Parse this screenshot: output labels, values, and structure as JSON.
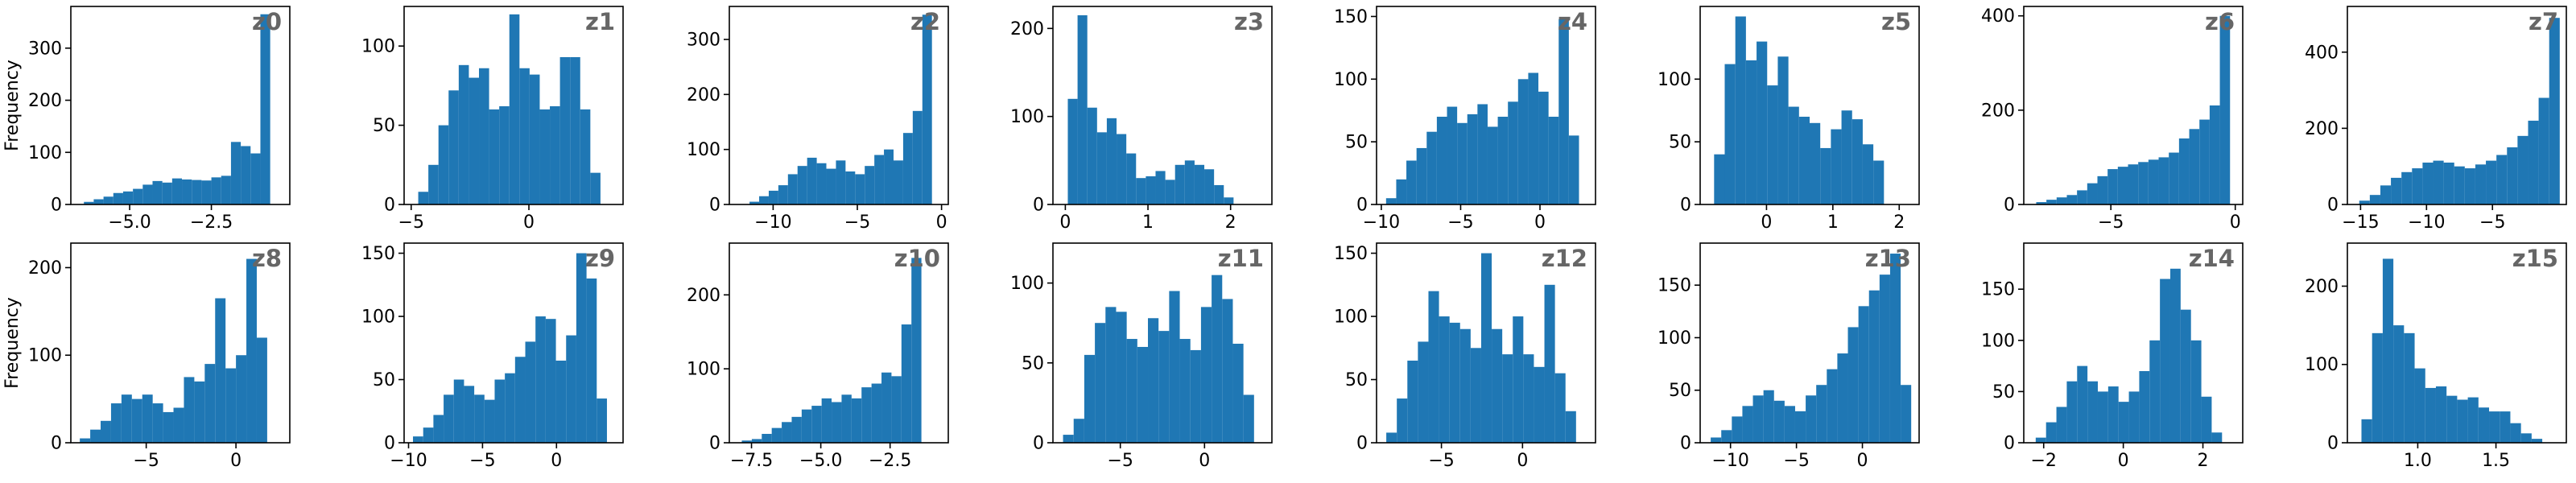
{
  "style": {
    "bar_color": "#1f77b4",
    "title_color": "#666666",
    "axis_color": "#000000"
  },
  "chart_data": [
    {
      "type": "bar",
      "title": "z0",
      "ylabel": "Frequency",
      "xlim": [
        -6.8,
        -0.1
      ],
      "ylim": [
        0,
        380
      ],
      "xticks": [
        -5,
        -2.5
      ],
      "xtick_labels": [
        "−5.0",
        "−2.5"
      ],
      "yticks": [
        0,
        100,
        200,
        300
      ],
      "ytick_labels": [
        "0",
        "100",
        "200",
        "300"
      ],
      "bin_start": -6.4,
      "bin_width": 0.3,
      "values": [
        5,
        10,
        15,
        22,
        25,
        30,
        38,
        45,
        42,
        50,
        48,
        47,
        46,
        52,
        55,
        120,
        112,
        98,
        365
      ]
    },
    {
      "type": "bar",
      "title": "z1",
      "ylabel": "",
      "xlim": [
        -5.3,
        4.0
      ],
      "ylim": [
        0,
        125
      ],
      "xticks": [
        -5,
        0
      ],
      "xtick_labels": [
        "−5",
        "0"
      ],
      "yticks": [
        0,
        50,
        100
      ],
      "ytick_labels": [
        "0",
        "50",
        "100"
      ],
      "bin_start": -4.7,
      "bin_width": 0.43,
      "values": [
        8,
        25,
        50,
        72,
        88,
        80,
        86,
        60,
        62,
        120,
        86,
        82,
        60,
        62,
        93,
        93,
        60,
        20
      ]
    },
    {
      "type": "bar",
      "title": "z2",
      "ylabel": "",
      "xlim": [
        -12.6,
        0.4
      ],
      "ylim": [
        0,
        360
      ],
      "xticks": [
        -10,
        -5,
        0
      ],
      "xtick_labels": [
        "−10",
        "−5",
        "0"
      ],
      "yticks": [
        0,
        100,
        200,
        300
      ],
      "ytick_labels": [
        "0",
        "100",
        "200",
        "300"
      ],
      "bin_start": -11.4,
      "bin_width": 0.57,
      "values": [
        5,
        15,
        25,
        35,
        55,
        70,
        85,
        75,
        65,
        80,
        60,
        55,
        70,
        90,
        100,
        80,
        130,
        170,
        345
      ]
    },
    {
      "type": "bar",
      "title": "z3",
      "ylabel": "",
      "xlim": [
        -0.15,
        2.5
      ],
      "ylim": [
        0,
        225
      ],
      "xticks": [
        0,
        1,
        2
      ],
      "xtick_labels": [
        "0",
        "1",
        "2"
      ],
      "yticks": [
        0,
        100,
        200
      ],
      "ytick_labels": [
        "0",
        "100",
        "200"
      ],
      "bin_start": 0.03,
      "bin_width": 0.118,
      "values": [
        120,
        215,
        110,
        82,
        98,
        80,
        58,
        30,
        32,
        38,
        28,
        45,
        50,
        45,
        40,
        22,
        8
      ]
    },
    {
      "type": "bar",
      "title": "z4",
      "ylabel": "",
      "xlim": [
        -10.3,
        3.5
      ],
      "ylim": [
        0,
        158
      ],
      "xticks": [
        -10,
        -5,
        0
      ],
      "xtick_labels": [
        "−10",
        "−5",
        "0"
      ],
      "yticks": [
        0,
        50,
        100,
        150
      ],
      "ytick_labels": [
        "0",
        "50",
        "100",
        "150"
      ],
      "bin_start": -9.7,
      "bin_width": 0.64,
      "values": [
        5,
        20,
        35,
        45,
        58,
        70,
        78,
        65,
        72,
        80,
        62,
        70,
        82,
        100,
        105,
        90,
        70,
        148,
        55
      ]
    },
    {
      "type": "bar",
      "title": "z5",
      "ylabel": "",
      "xlim": [
        -1.0,
        2.3
      ],
      "ylim": [
        0,
        158
      ],
      "xticks": [
        0,
        1,
        2
      ],
      "xtick_labels": [
        "0",
        "1",
        "2"
      ],
      "yticks": [
        0,
        50,
        100
      ],
      "ytick_labels": [
        "0",
        "50",
        "100"
      ],
      "bin_start": -0.79,
      "bin_width": 0.16,
      "values": [
        40,
        112,
        150,
        115,
        130,
        95,
        118,
        78,
        70,
        65,
        45,
        60,
        75,
        68,
        48,
        35
      ]
    },
    {
      "type": "bar",
      "title": "z6",
      "ylabel": "",
      "xlim": [
        -8.5,
        0.3
      ],
      "ylim": [
        0,
        420
      ],
      "xticks": [
        -5,
        0
      ],
      "xtick_labels": [
        "−5",
        "0"
      ],
      "yticks": [
        0,
        200,
        400
      ],
      "ytick_labels": [
        "0",
        "200",
        "400"
      ],
      "bin_start": -8.0,
      "bin_width": 0.41,
      "values": [
        5,
        10,
        15,
        20,
        30,
        45,
        60,
        75,
        80,
        85,
        90,
        95,
        100,
        110,
        140,
        160,
        180,
        210,
        400
      ]
    },
    {
      "type": "bar",
      "title": "z7",
      "ylabel": "",
      "xlim": [
        -16.0,
        0.6
      ],
      "ylim": [
        0,
        520
      ],
      "xticks": [
        -15,
        -10,
        -5
      ],
      "xtick_labels": [
        "−15",
        "−10",
        "−5"
      ],
      "yticks": [
        0,
        200,
        400
      ],
      "ytick_labels": [
        "0",
        "200",
        "400"
      ],
      "bin_start": -15.1,
      "bin_width": 0.8,
      "values": [
        10,
        25,
        50,
        70,
        85,
        95,
        110,
        115,
        110,
        100,
        95,
        105,
        115,
        130,
        150,
        180,
        220,
        280,
        490
      ]
    },
    {
      "type": "bar",
      "title": "z8",
      "ylabel": "Frequency",
      "xlim": [
        -9.2,
        3.0
      ],
      "ylim": [
        0,
        228
      ],
      "xticks": [
        -5,
        0
      ],
      "xtick_labels": [
        "−5",
        "0"
      ],
      "yticks": [
        0,
        100,
        200
      ],
      "ytick_labels": [
        "0",
        "100",
        "200"
      ],
      "bin_start": -8.7,
      "bin_width": 0.58,
      "values": [
        5,
        15,
        25,
        45,
        55,
        50,
        55,
        45,
        35,
        40,
        75,
        70,
        90,
        165,
        85,
        100,
        210,
        120
      ]
    },
    {
      "type": "bar",
      "title": "z9",
      "ylabel": "",
      "xlim": [
        -10.3,
        4.5
      ],
      "ylim": [
        0,
        158
      ],
      "xticks": [
        -10,
        -5,
        0
      ],
      "xtick_labels": [
        "−10",
        "−5",
        "0"
      ],
      "yticks": [
        0,
        50,
        100,
        150
      ],
      "ytick_labels": [
        "0",
        "50",
        "100",
        "150"
      ],
      "bin_start": -9.7,
      "bin_width": 0.69,
      "values": [
        5,
        12,
        22,
        38,
        50,
        45,
        38,
        34,
        50,
        55,
        68,
        80,
        100,
        98,
        65,
        85,
        150,
        130,
        35
      ]
    },
    {
      "type": "bar",
      "title": "z10",
      "ylabel": "",
      "xlim": [
        -8.3,
        -0.4
      ],
      "ylim": [
        0,
        270
      ],
      "xticks": [
        -7.5,
        -5,
        -2.5
      ],
      "xtick_labels": [
        "−7.5",
        "−5.0",
        "−2.5"
      ],
      "yticks": [
        0,
        100,
        200
      ],
      "ytick_labels": [
        "0",
        "100",
        "200"
      ],
      "bin_start": -7.85,
      "bin_width": 0.36,
      "values": [
        3,
        5,
        12,
        20,
        28,
        35,
        45,
        50,
        60,
        55,
        65,
        60,
        75,
        80,
        95,
        90,
        160,
        250
      ]
    },
    {
      "type": "bar",
      "title": "z11",
      "ylabel": "",
      "xlim": [
        -9.0,
        4.0
      ],
      "ylim": [
        0,
        125
      ],
      "xticks": [
        -5,
        0
      ],
      "xtick_labels": [
        "−5",
        "0"
      ],
      "yticks": [
        0,
        50,
        100
      ],
      "ytick_labels": [
        "0",
        "50",
        "100"
      ],
      "bin_start": -8.4,
      "bin_width": 0.63,
      "values": [
        5,
        15,
        55,
        75,
        85,
        82,
        65,
        60,
        78,
        70,
        95,
        65,
        58,
        85,
        105,
        90,
        62,
        30
      ]
    },
    {
      "type": "bar",
      "title": "z12",
      "ylabel": "",
      "xlim": [
        -9.0,
        4.5
      ],
      "ylim": [
        0,
        158
      ],
      "xticks": [
        -5,
        0
      ],
      "xtick_labels": [
        "−5",
        "0"
      ],
      "yticks": [
        0,
        50,
        100,
        150
      ],
      "ytick_labels": [
        "0",
        "50",
        "100",
        "150"
      ],
      "bin_start": -8.4,
      "bin_width": 0.65,
      "values": [
        8,
        35,
        65,
        80,
        120,
        100,
        95,
        90,
        75,
        150,
        90,
        70,
        100,
        70,
        60,
        125,
        55,
        25
      ]
    },
    {
      "type": "bar",
      "title": "z13",
      "ylabel": "",
      "xlim": [
        -12.3,
        4.3
      ],
      "ylim": [
        0,
        190
      ],
      "xticks": [
        -10,
        -5,
        0
      ],
      "xtick_labels": [
        "−10",
        "−5",
        "0"
      ],
      "yticks": [
        0,
        50,
        100,
        150
      ],
      "ytick_labels": [
        "0",
        "50",
        "100",
        "150"
      ],
      "bin_start": -11.5,
      "bin_width": 0.8,
      "values": [
        5,
        12,
        25,
        35,
        45,
        50,
        40,
        35,
        30,
        45,
        55,
        70,
        85,
        110,
        130,
        145,
        160,
        180,
        55
      ]
    },
    {
      "type": "bar",
      "title": "z14",
      "ylabel": "",
      "xlim": [
        -2.5,
        3.0
      ],
      "ylim": [
        0,
        195
      ],
      "xticks": [
        -2,
        0,
        2
      ],
      "xtick_labels": [
        "−2",
        "0",
        "2"
      ],
      "yticks": [
        0,
        50,
        100,
        150
      ],
      "ytick_labels": [
        "0",
        "50",
        "100",
        "150"
      ],
      "bin_start": -2.2,
      "bin_width": 0.26,
      "values": [
        5,
        20,
        35,
        60,
        75,
        60,
        50,
        55,
        40,
        50,
        70,
        100,
        160,
        170,
        130,
        100,
        45,
        10
      ]
    },
    {
      "type": "bar",
      "title": "z15",
      "ylabel": "",
      "xlim": [
        0.55,
        1.95
      ],
      "ylim": [
        0,
        255
      ],
      "xticks": [
        1.0,
        1.5
      ],
      "xtick_labels": [
        "1.0",
        "1.5"
      ],
      "yticks": [
        0,
        100,
        200
      ],
      "ytick_labels": [
        "0",
        "100",
        "200"
      ],
      "bin_start": 0.64,
      "bin_width": 0.068,
      "values": [
        30,
        140,
        235,
        150,
        140,
        95,
        70,
        72,
        60,
        55,
        58,
        45,
        40,
        40,
        25,
        12,
        5
      ]
    }
  ]
}
